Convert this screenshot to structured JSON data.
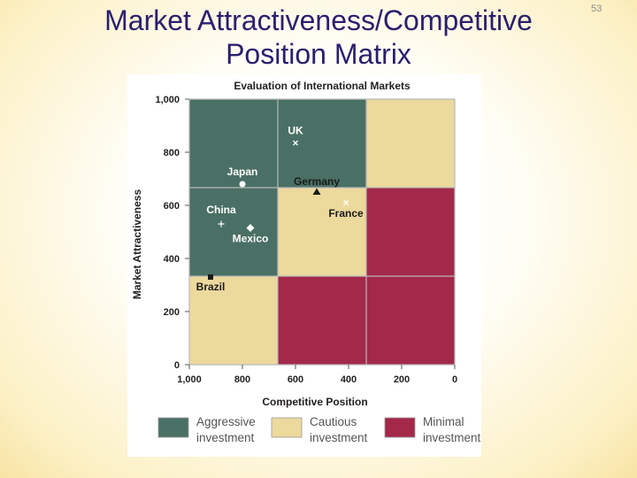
{
  "slide": {
    "title_line1": "Market Attractiveness/Competitive",
    "title_line2": "Position Matrix",
    "page_number": "53"
  },
  "colors": {
    "aggressive": "#4a7065",
    "cautious": "#ecd99c",
    "minimal": "#a3284a",
    "text": "#231f20"
  },
  "chart_data": {
    "type": "scatter",
    "title": "Evaluation of International Markets",
    "xlabel": "Competitive Position",
    "ylabel": "Market Attractiveness",
    "xlim": [
      1000,
      0
    ],
    "ylim": [
      0,
      1000
    ],
    "x_reversed": true,
    "xticks": [
      "1,000",
      "800",
      "600",
      "400",
      "200",
      "0"
    ],
    "yticks": [
      "0",
      "200",
      "400",
      "600",
      "800",
      "1,000"
    ],
    "grid_zones": [
      [
        "aggressive",
        "aggressive",
        "cautious"
      ],
      [
        "aggressive",
        "cautious",
        "minimal"
      ],
      [
        "cautious",
        "minimal",
        "minimal"
      ]
    ],
    "points": [
      {
        "label": "UK",
        "x": 600,
        "y": 835,
        "marker": "x"
      },
      {
        "label": "Japan",
        "x": 800,
        "y": 680,
        "marker": "circle"
      },
      {
        "label": "Germany",
        "x": 520,
        "y": 650,
        "marker": "triangle"
      },
      {
        "label": "France",
        "x": 410,
        "y": 610,
        "marker": "x"
      },
      {
        "label": "China",
        "x": 880,
        "y": 530,
        "marker": "plus"
      },
      {
        "label": "Mexico",
        "x": 770,
        "y": 515,
        "marker": "diamond"
      },
      {
        "label": "Brazil",
        "x": 920,
        "y": 330,
        "marker": "square"
      }
    ],
    "legend": [
      {
        "key": "aggressive",
        "line1": "Aggressive",
        "line2": "investment"
      },
      {
        "key": "cautious",
        "line1": "Cautious",
        "line2": "investment"
      },
      {
        "key": "minimal",
        "line1": "Minimal",
        "line2": "investment"
      }
    ],
    "legend_position": "bottom"
  }
}
